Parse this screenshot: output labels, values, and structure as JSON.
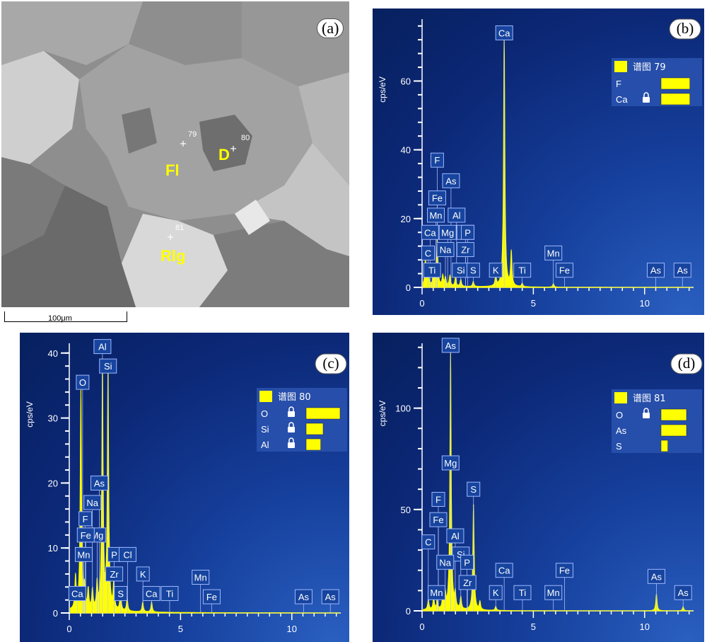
{
  "panels": [
    {
      "id": "b",
      "panel_label": "(b)",
      "legend_title": "谱图 79",
      "legend_items": [
        {
          "element": "F",
          "locked": false,
          "bar": 0.85
        },
        {
          "element": "Ca",
          "locked": true,
          "bar": 0.85
        }
      ],
      "ylabel": "cps/eV",
      "xticks": [
        0,
        5,
        10
      ],
      "yticks": [
        0,
        20,
        40,
        60
      ],
      "xlim": [
        0,
        12.2
      ],
      "ylim": [
        0,
        78
      ],
      "peaks": [
        {
          "x": 0.15,
          "y": 8
        },
        {
          "x": 0.28,
          "y": 4
        },
        {
          "x": 0.53,
          "y": 5
        },
        {
          "x": 0.68,
          "y": 14
        },
        {
          "x": 0.93,
          "y": 3
        },
        {
          "x": 1.05,
          "y": 2.5
        },
        {
          "x": 1.25,
          "y": 3
        },
        {
          "x": 1.5,
          "y": 2.5
        },
        {
          "x": 1.74,
          "y": 2
        },
        {
          "x": 2.3,
          "y": 1.5
        },
        {
          "x": 3.31,
          "y": 3
        },
        {
          "x": 3.69,
          "y": 73
        },
        {
          "x": 4.01,
          "y": 10
        },
        {
          "x": 4.5,
          "y": 1
        },
        {
          "x": 5.9,
          "y": 1
        }
      ],
      "element_labels": [
        {
          "text": "Ca",
          "x": 3.69,
          "y": 74
        },
        {
          "text": "F",
          "x": 0.68,
          "y": 37
        },
        {
          "text": "As",
          "x": 1.3,
          "y": 31
        },
        {
          "text": "Fe",
          "x": 0.68,
          "y": 26
        },
        {
          "text": "Mn",
          "x": 0.62,
          "y": 21
        },
        {
          "text": "Al",
          "x": 1.55,
          "y": 21
        },
        {
          "text": "Ca",
          "x": 0.36,
          "y": 16
        },
        {
          "text": "Mg",
          "x": 1.15,
          "y": 16
        },
        {
          "text": "Zr",
          "x": 1.95,
          "y": 16
        },
        {
          "text": "P",
          "x": 2.05,
          "y": 16
        },
        {
          "text": "Na",
          "x": 1.05,
          "y": 11
        },
        {
          "text": "Zr",
          "x": 1.95,
          "y": 11
        },
        {
          "text": "C",
          "x": 0.27,
          "y": 10
        },
        {
          "text": "Ti",
          "x": 0.45,
          "y": 5
        },
        {
          "text": "Si",
          "x": 1.74,
          "y": 5
        },
        {
          "text": "S",
          "x": 2.3,
          "y": 5
        },
        {
          "text": "K",
          "x": 3.31,
          "y": 5
        },
        {
          "text": "Ti",
          "x": 4.5,
          "y": 5
        },
        {
          "text": "Mn",
          "x": 5.9,
          "y": 10
        },
        {
          "text": "Fe",
          "x": 6.4,
          "y": 5
        },
        {
          "text": "As",
          "x": 10.5,
          "y": 5
        },
        {
          "text": "As",
          "x": 11.7,
          "y": 5
        }
      ]
    },
    {
      "id": "c",
      "panel_label": "(c)",
      "legend_title": "谱图 80",
      "legend_items": [
        {
          "element": "O",
          "locked": true,
          "bar": 1.0
        },
        {
          "element": "Si",
          "locked": true,
          "bar": 0.5
        },
        {
          "element": "Al",
          "locked": true,
          "bar": 0.43
        }
      ],
      "ylabel": "cps/eV",
      "xticks": [
        0,
        5,
        10
      ],
      "yticks": [
        0,
        10,
        20,
        30,
        40
      ],
      "xlim": [
        0,
        12.2
      ],
      "ylim": [
        0,
        41.5
      ],
      "peaks": [
        {
          "x": 0.28,
          "y": 5
        },
        {
          "x": 0.52,
          "y": 34
        },
        {
          "x": 0.68,
          "y": 3
        },
        {
          "x": 0.85,
          "y": 3
        },
        {
          "x": 1.04,
          "y": 3
        },
        {
          "x": 1.25,
          "y": 4
        },
        {
          "x": 1.49,
          "y": 38
        },
        {
          "x": 1.74,
          "y": 38
        },
        {
          "x": 2.0,
          "y": 4
        },
        {
          "x": 2.3,
          "y": 3
        },
        {
          "x": 2.6,
          "y": 2
        },
        {
          "x": 3.3,
          "y": 1.5
        },
        {
          "x": 3.7,
          "y": 1.5
        }
      ],
      "element_labels": [
        {
          "text": "Al",
          "x": 1.49,
          "y": 41
        },
        {
          "text": "Si",
          "x": 1.74,
          "y": 38
        },
        {
          "text": "O",
          "x": 0.6,
          "y": 35.5
        },
        {
          "text": "As",
          "x": 1.35,
          "y": 20
        },
        {
          "text": "Na",
          "x": 1.04,
          "y": 17
        },
        {
          "text": "F",
          "x": 0.72,
          "y": 14.5
        },
        {
          "text": "Mg",
          "x": 1.25,
          "y": 12
        },
        {
          "text": "Fe",
          "x": 0.74,
          "y": 12
        },
        {
          "text": "Mn",
          "x": 0.65,
          "y": 9
        },
        {
          "text": "P",
          "x": 2.02,
          "y": 9
        },
        {
          "text": "Cl",
          "x": 2.62,
          "y": 9
        },
        {
          "text": "Zr",
          "x": 2.02,
          "y": 6
        },
        {
          "text": "K",
          "x": 3.31,
          "y": 6
        },
        {
          "text": "S",
          "x": 2.31,
          "y": 3
        },
        {
          "text": "Ca",
          "x": 3.69,
          "y": 3
        },
        {
          "text": "Ti",
          "x": 4.51,
          "y": 3
        },
        {
          "text": "Ca",
          "x": 0.36,
          "y": 3
        },
        {
          "text": "Mn",
          "x": 5.9,
          "y": 5.5
        },
        {
          "text": "Fe",
          "x": 6.4,
          "y": 2.5
        },
        {
          "text": "As",
          "x": 10.53,
          "y": 2.5
        },
        {
          "text": "As",
          "x": 11.73,
          "y": 2.5
        }
      ]
    },
    {
      "id": "d",
      "panel_label": "(d)",
      "legend_title": "谱图 81",
      "legend_items": [
        {
          "element": "O",
          "locked": true,
          "bar": 0.75
        },
        {
          "element": "As",
          "locked": false,
          "bar": 0.75
        },
        {
          "element": "S",
          "locked": false,
          "bar": 0.2
        }
      ],
      "ylabel": "cps/eV",
      "xticks": [
        0,
        5,
        10
      ],
      "yticks": [
        0,
        50,
        100
      ],
      "xlim": [
        0,
        12.2
      ],
      "ylim": [
        0,
        132
      ],
      "peaks": [
        {
          "x": 0.28,
          "y": 5
        },
        {
          "x": 0.52,
          "y": 6
        },
        {
          "x": 0.68,
          "y": 4
        },
        {
          "x": 0.93,
          "y": 6
        },
        {
          "x": 1.04,
          "y": 7
        },
        {
          "x": 1.28,
          "y": 128
        },
        {
          "x": 1.49,
          "y": 7
        },
        {
          "x": 1.74,
          "y": 6
        },
        {
          "x": 2.31,
          "y": 52
        },
        {
          "x": 2.6,
          "y": 4
        },
        {
          "x": 3.31,
          "y": 2
        },
        {
          "x": 10.53,
          "y": 8
        },
        {
          "x": 11.73,
          "y": 2
        }
      ],
      "element_labels": [
        {
          "text": "As",
          "x": 1.28,
          "y": 131
        },
        {
          "text": "Mg",
          "x": 1.28,
          "y": 73
        },
        {
          "text": "S",
          "x": 2.31,
          "y": 60
        },
        {
          "text": "F",
          "x": 0.73,
          "y": 55
        },
        {
          "text": "Fe",
          "x": 0.73,
          "y": 45
        },
        {
          "text": "Al",
          "x": 1.49,
          "y": 37
        },
        {
          "text": "C",
          "x": 0.28,
          "y": 34
        },
        {
          "text": "Si",
          "x": 1.74,
          "y": 28
        },
        {
          "text": "Na",
          "x": 1.04,
          "y": 24
        },
        {
          "text": "P",
          "x": 2.02,
          "y": 24
        },
        {
          "text": "Zr",
          "x": 2.04,
          "y": 14
        },
        {
          "text": "Mn",
          "x": 0.65,
          "y": 9
        },
        {
          "text": "K",
          "x": 3.31,
          "y": 9
        },
        {
          "text": "Ti",
          "x": 4.51,
          "y": 9
        },
        {
          "text": "Ca",
          "x": 3.69,
          "y": 20
        },
        {
          "text": "Mn",
          "x": 5.9,
          "y": 9
        },
        {
          "text": "Fe",
          "x": 6.4,
          "y": 20
        },
        {
          "text": "As",
          "x": 10.53,
          "y": 17
        },
        {
          "text": "As",
          "x": 11.73,
          "y": 9
        }
      ]
    }
  ],
  "sem": {
    "panel_label": "(a)",
    "phase_labels": [
      "Fl",
      "D",
      "Rlg"
    ],
    "point_labels": [
      "79",
      "80",
      "81"
    ],
    "scale_label": "100μm"
  },
  "chart_data": [
    {
      "type": "line",
      "panel": "b",
      "x": [
        0.15,
        0.28,
        0.53,
        0.68,
        0.93,
        1.05,
        1.25,
        1.5,
        1.74,
        2.3,
        3.31,
        3.69,
        4.01,
        4.5,
        5.9
      ],
      "y": [
        8,
        4,
        5,
        14,
        3,
        2.5,
        3,
        2.5,
        2,
        1.5,
        3,
        73,
        10,
        1,
        1
      ],
      "ylabel": "cps/eV",
      "xlim": [
        0,
        12.2
      ],
      "ylim": [
        0,
        78
      ]
    },
    {
      "type": "line",
      "panel": "c",
      "x": [
        0.28,
        0.52,
        0.68,
        0.85,
        1.04,
        1.25,
        1.49,
        1.74,
        2.0,
        2.3,
        2.6,
        3.3,
        3.7
      ],
      "y": [
        5,
        34,
        3,
        3,
        3,
        4,
        38,
        38,
        4,
        3,
        2,
        1.5,
        1.5
      ],
      "ylabel": "cps/eV",
      "xlim": [
        0,
        12.2
      ],
      "ylim": [
        0,
        41.5
      ]
    },
    {
      "type": "line",
      "panel": "d",
      "x": [
        0.28,
        0.52,
        0.68,
        0.93,
        1.04,
        1.28,
        1.49,
        1.74,
        2.31,
        2.6,
        3.31,
        10.53,
        11.73
      ],
      "y": [
        5,
        6,
        4,
        6,
        7,
        128,
        7,
        6,
        52,
        4,
        2,
        8,
        2
      ],
      "ylabel": "cps/eV",
      "xlim": [
        0,
        12.2
      ],
      "ylim": [
        0,
        132
      ]
    }
  ]
}
